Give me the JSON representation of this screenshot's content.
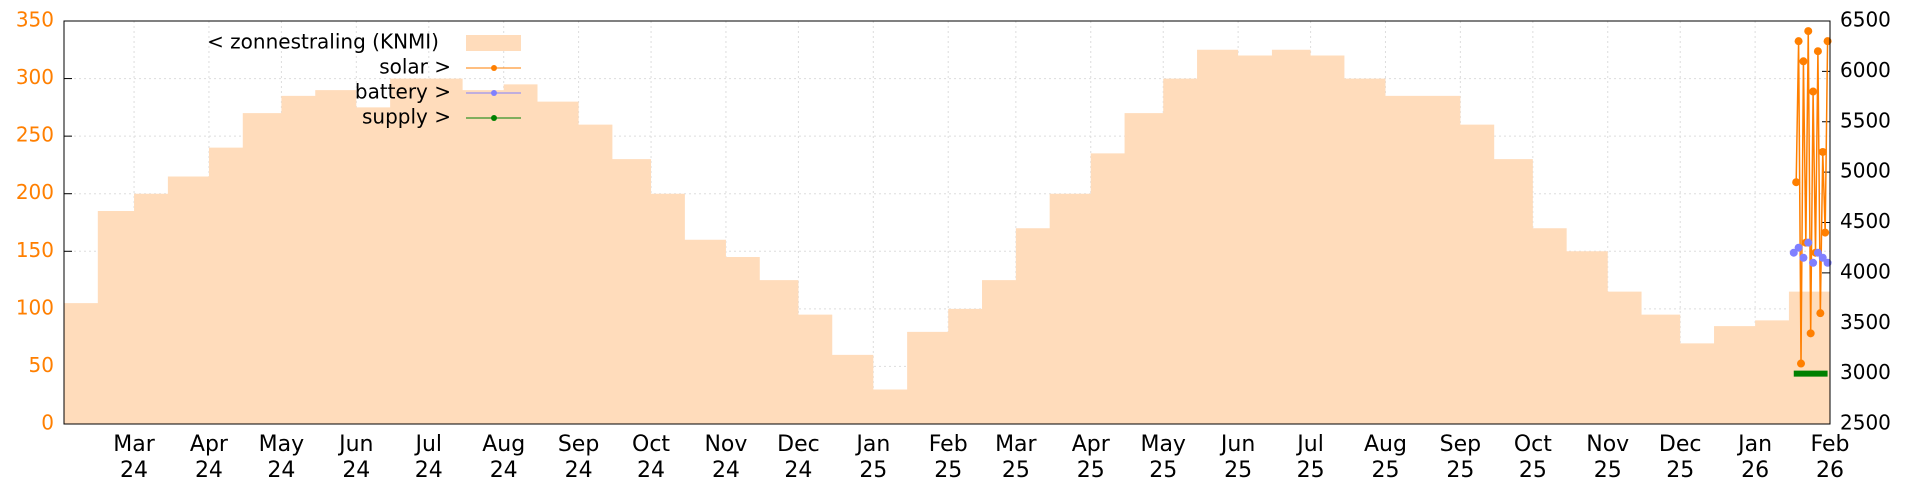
{
  "chart_data": {
    "type": "area",
    "xlim": [
      "2024-02-01",
      "2026-02-01"
    ],
    "xticks": [
      {
        "value": "2024-03-01",
        "label": "Mar 24"
      },
      {
        "value": "2024-04-01",
        "label": "Apr 24"
      },
      {
        "value": "2024-05-01",
        "label": "May 24"
      },
      {
        "value": "2024-06-01",
        "label": "Jun 24"
      },
      {
        "value": "2024-07-01",
        "label": "Jul 24"
      },
      {
        "value": "2024-08-01",
        "label": "Aug 24"
      },
      {
        "value": "2024-09-01",
        "label": "Sep 24"
      },
      {
        "value": "2024-10-01",
        "label": "Oct 24"
      },
      {
        "value": "2024-11-01",
        "label": "Nov 24"
      },
      {
        "value": "2024-12-01",
        "label": "Dec 24"
      },
      {
        "value": "2025-01-01",
        "label": "Jan 25"
      },
      {
        "value": "2025-02-01",
        "label": "Feb 25"
      },
      {
        "value": "2025-03-01",
        "label": "Mar 25"
      },
      {
        "value": "2025-04-01",
        "label": "Apr 25"
      },
      {
        "value": "2025-05-01",
        "label": "May 25"
      },
      {
        "value": "2025-06-01",
        "label": "Jun 25"
      },
      {
        "value": "2025-07-01",
        "label": "Jul 25"
      },
      {
        "value": "2025-08-01",
        "label": "Aug 25"
      },
      {
        "value": "2025-09-01",
        "label": "Sep 25"
      },
      {
        "value": "2025-10-01",
        "label": "Oct 25"
      },
      {
        "value": "2025-11-01",
        "label": "Nov 25"
      },
      {
        "value": "2025-12-01",
        "label": "Dec 25"
      },
      {
        "value": "2026-01-01",
        "label": "Jan 26"
      },
      {
        "value": "2026-02-01",
        "label": "Feb 26"
      }
    ],
    "ylim": [
      0,
      350
    ],
    "yticks": [
      0,
      50,
      100,
      150,
      200,
      250,
      300,
      350
    ],
    "y2lim": [
      2500,
      6500
    ],
    "y2ticks": [
      2500,
      3000,
      3500,
      4000,
      4500,
      5000,
      5500,
      6000,
      6500
    ],
    "grid": true,
    "legend": "top-left",
    "series": [
      {
        "name": "< zonnestraling (KNMI)",
        "color": "#ffdcbb",
        "style": "steps",
        "x": [
          "2024-02-01",
          "2024-02-15",
          "2024-03-01",
          "2024-03-15",
          "2024-04-01",
          "2024-04-15",
          "2024-05-01",
          "2024-05-15",
          "2024-06-01",
          "2024-06-15",
          "2024-07-01",
          "2024-07-15",
          "2024-08-01",
          "2024-08-15",
          "2024-09-01",
          "2024-09-15",
          "2024-10-01",
          "2024-10-15",
          "2024-11-01",
          "2024-11-15",
          "2024-12-01",
          "2024-12-15",
          "2025-01-01",
          "2025-01-15",
          "2025-02-01",
          "2025-02-15",
          "2025-03-01",
          "2025-03-15",
          "2025-04-01",
          "2025-04-15",
          "2025-05-01",
          "2025-05-15",
          "2025-06-01",
          "2025-06-15",
          "2025-07-01",
          "2025-07-15",
          "2025-08-01",
          "2025-08-15",
          "2025-09-01",
          "2025-09-15",
          "2025-10-01",
          "2025-10-15",
          "2025-11-01",
          "2025-11-15",
          "2025-12-01",
          "2025-12-15",
          "2026-01-01",
          "2026-01-15"
        ],
        "values": [
          105,
          185,
          200,
          215,
          240,
          270,
          285,
          290,
          275,
          300,
          300,
          290,
          295,
          280,
          260,
          230,
          200,
          160,
          145,
          125,
          95,
          60,
          30,
          80,
          100,
          125,
          170,
          200,
          235,
          270,
          300,
          325,
          320,
          325,
          320,
          300,
          285,
          285,
          260,
          230,
          170,
          150,
          115,
          95,
          70,
          85,
          90,
          115
        ]
      },
      {
        "name": "solar >",
        "color": "#ff7f00",
        "style": "linespoints",
        "axis": "y2",
        "x": [
          "2026-01-18",
          "2026-01-19",
          "2026-01-20",
          "2026-01-21",
          "2026-01-22",
          "2026-01-23",
          "2026-01-24",
          "2026-01-25",
          "2026-01-26",
          "2026-01-27",
          "2026-01-28",
          "2026-01-29",
          "2026-01-30",
          "2026-01-31"
        ],
        "values": [
          4900,
          6300,
          3100,
          6100,
          4300,
          6400,
          3400,
          5800,
          4200,
          6200,
          3600,
          5200,
          4400,
          6300
        ]
      },
      {
        "name": "battery >",
        "color": "#8080ff",
        "style": "points",
        "axis": "y2",
        "x": [
          "2026-01-17",
          "2026-01-19",
          "2026-01-21",
          "2026-01-23",
          "2026-01-25",
          "2026-01-27",
          "2026-01-29",
          "2026-01-31"
        ],
        "values": [
          4200,
          4250,
          4150,
          4300,
          4100,
          4200,
          4150,
          4100
        ]
      },
      {
        "name": "supply >",
        "color": "#008000",
        "style": "line",
        "axis": "y2",
        "x": [
          "2026-01-17",
          "2026-01-24",
          "2026-01-31"
        ],
        "values": [
          3000,
          3000,
          3000
        ]
      }
    ]
  }
}
